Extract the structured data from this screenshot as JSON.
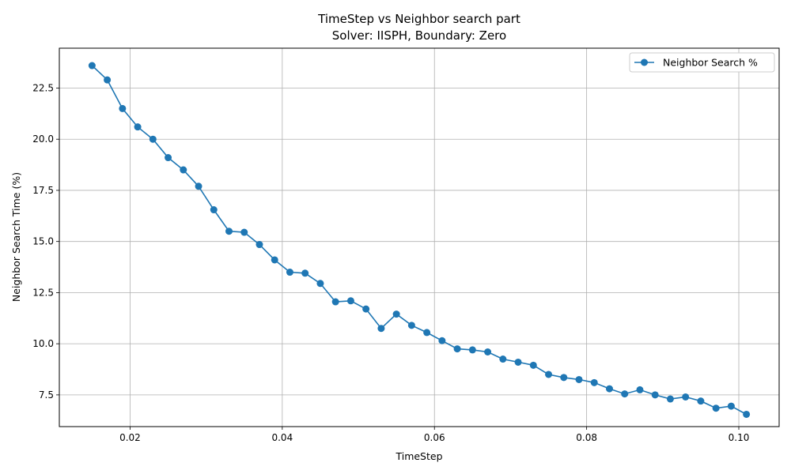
{
  "chart_data": {
    "type": "line",
    "title": "TimeStep vs Neighbor search part",
    "subtitle": "Solver: IISPH, Boundary: Zero",
    "xlabel": "TimeStep",
    "ylabel": "Neighbor Search Time (%)",
    "xlim": [
      0.0107,
      0.1053
    ],
    "ylim": [
      5.95,
      24.45
    ],
    "xticks": [
      0.02,
      0.04,
      0.06,
      0.08,
      0.1
    ],
    "xtick_labels": [
      "0.02",
      "0.04",
      "0.06",
      "0.08",
      "0.10"
    ],
    "yticks": [
      7.5,
      10.0,
      12.5,
      15.0,
      17.5,
      20.0,
      22.5
    ],
    "ytick_labels": [
      "7.5",
      "10.0",
      "12.5",
      "15.0",
      "17.5",
      "20.0",
      "22.5"
    ],
    "grid": true,
    "legend_position": "top-right",
    "color": "#1f77b4",
    "series": [
      {
        "name": "Neighbor Search %",
        "x": [
          0.015,
          0.017,
          0.019,
          0.021,
          0.023,
          0.025,
          0.027,
          0.029,
          0.031,
          0.033,
          0.035,
          0.037,
          0.039,
          0.041,
          0.043,
          0.045,
          0.047,
          0.049,
          0.051,
          0.053,
          0.055,
          0.057,
          0.059,
          0.061,
          0.063,
          0.065,
          0.067,
          0.069,
          0.071,
          0.073,
          0.075,
          0.077,
          0.079,
          0.081,
          0.083,
          0.085,
          0.087,
          0.089,
          0.091,
          0.093,
          0.095,
          0.097,
          0.099,
          0.101
        ],
        "values": [
          23.6,
          22.9,
          21.5,
          20.6,
          20.0,
          19.1,
          18.5,
          17.7,
          16.55,
          15.5,
          15.45,
          14.85,
          14.1,
          13.5,
          13.45,
          12.95,
          12.05,
          12.1,
          11.7,
          10.75,
          11.45,
          10.9,
          10.55,
          10.15,
          9.75,
          9.7,
          9.6,
          9.25,
          9.1,
          8.95,
          8.5,
          8.35,
          8.25,
          8.1,
          7.8,
          7.55,
          7.75,
          7.5,
          7.3,
          7.4,
          7.2,
          6.85,
          6.95,
          6.55
        ]
      }
    ]
  }
}
